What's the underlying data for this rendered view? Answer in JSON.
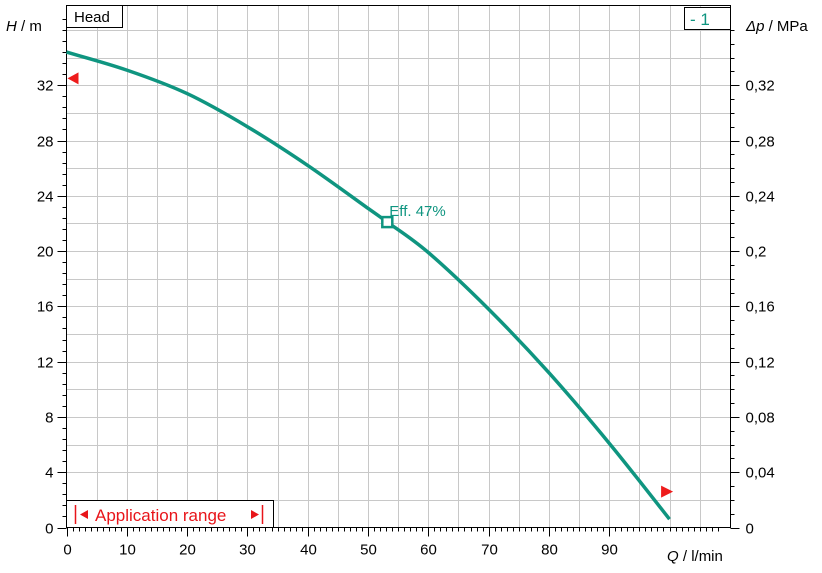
{
  "chart_data": {
    "type": "line",
    "title": "Head",
    "curve_label": "- 1",
    "xlabel": {
      "symbol": "Q",
      "unit": "l/min"
    },
    "ylabel": {
      "symbol": "H",
      "unit": "m"
    },
    "y2label": {
      "symbol": "Δp",
      "unit": "MPa"
    },
    "xlim": [
      0,
      108
    ],
    "ylim": [
      0,
      37.5
    ],
    "y2lim": [
      0,
      0.375
    ],
    "x_ticks": [
      0,
      10,
      20,
      30,
      40,
      50,
      60,
      70,
      80,
      90
    ],
    "x_tick_labels": [
      "0",
      "10",
      "20",
      "30",
      "40",
      "50",
      "60",
      "70",
      "80",
      "90"
    ],
    "y_ticks": [
      0,
      4,
      8,
      12,
      16,
      20,
      24,
      28,
      32
    ],
    "y_tick_labels": [
      "0",
      "4",
      "8",
      "12",
      "16",
      "20",
      "24",
      "28",
      "32"
    ],
    "y2_ticks": [
      0,
      0.04,
      0.08,
      0.12,
      0.16,
      0.2,
      0.24,
      0.28,
      0.32
    ],
    "y2_tick_labels": [
      "0",
      "0,04",
      "0,08",
      "0,12",
      "0,16",
      "0,2",
      "0,24",
      "0,28",
      "0,32"
    ],
    "grid": true,
    "colors": {
      "curve": "#0f9580",
      "marker": "#ee1c1c",
      "text_red": "#e8151a"
    },
    "series": [
      {
        "name": "",
        "x": [
          0,
          10,
          20,
          30,
          40,
          50,
          53.2,
          60,
          70,
          80,
          90,
          100
        ],
        "y": [
          34.4,
          33.1,
          31.4,
          29.0,
          26.2,
          23.1,
          22.1,
          19.9,
          15.8,
          11.2,
          6.1,
          0.6
        ]
      }
    ],
    "annotations": {
      "efficiency": {
        "label": "Eff.  47%",
        "x": 53.2,
        "y": 22.1
      },
      "range_start_marker": {
        "x": 0,
        "y": 32.5
      },
      "range_end_marker": {
        "x": 99.6,
        "y": 2.6
      }
    },
    "application_range": {
      "label": "Application range",
      "x_start": 1.5,
      "x_end": 32.5
    }
  }
}
